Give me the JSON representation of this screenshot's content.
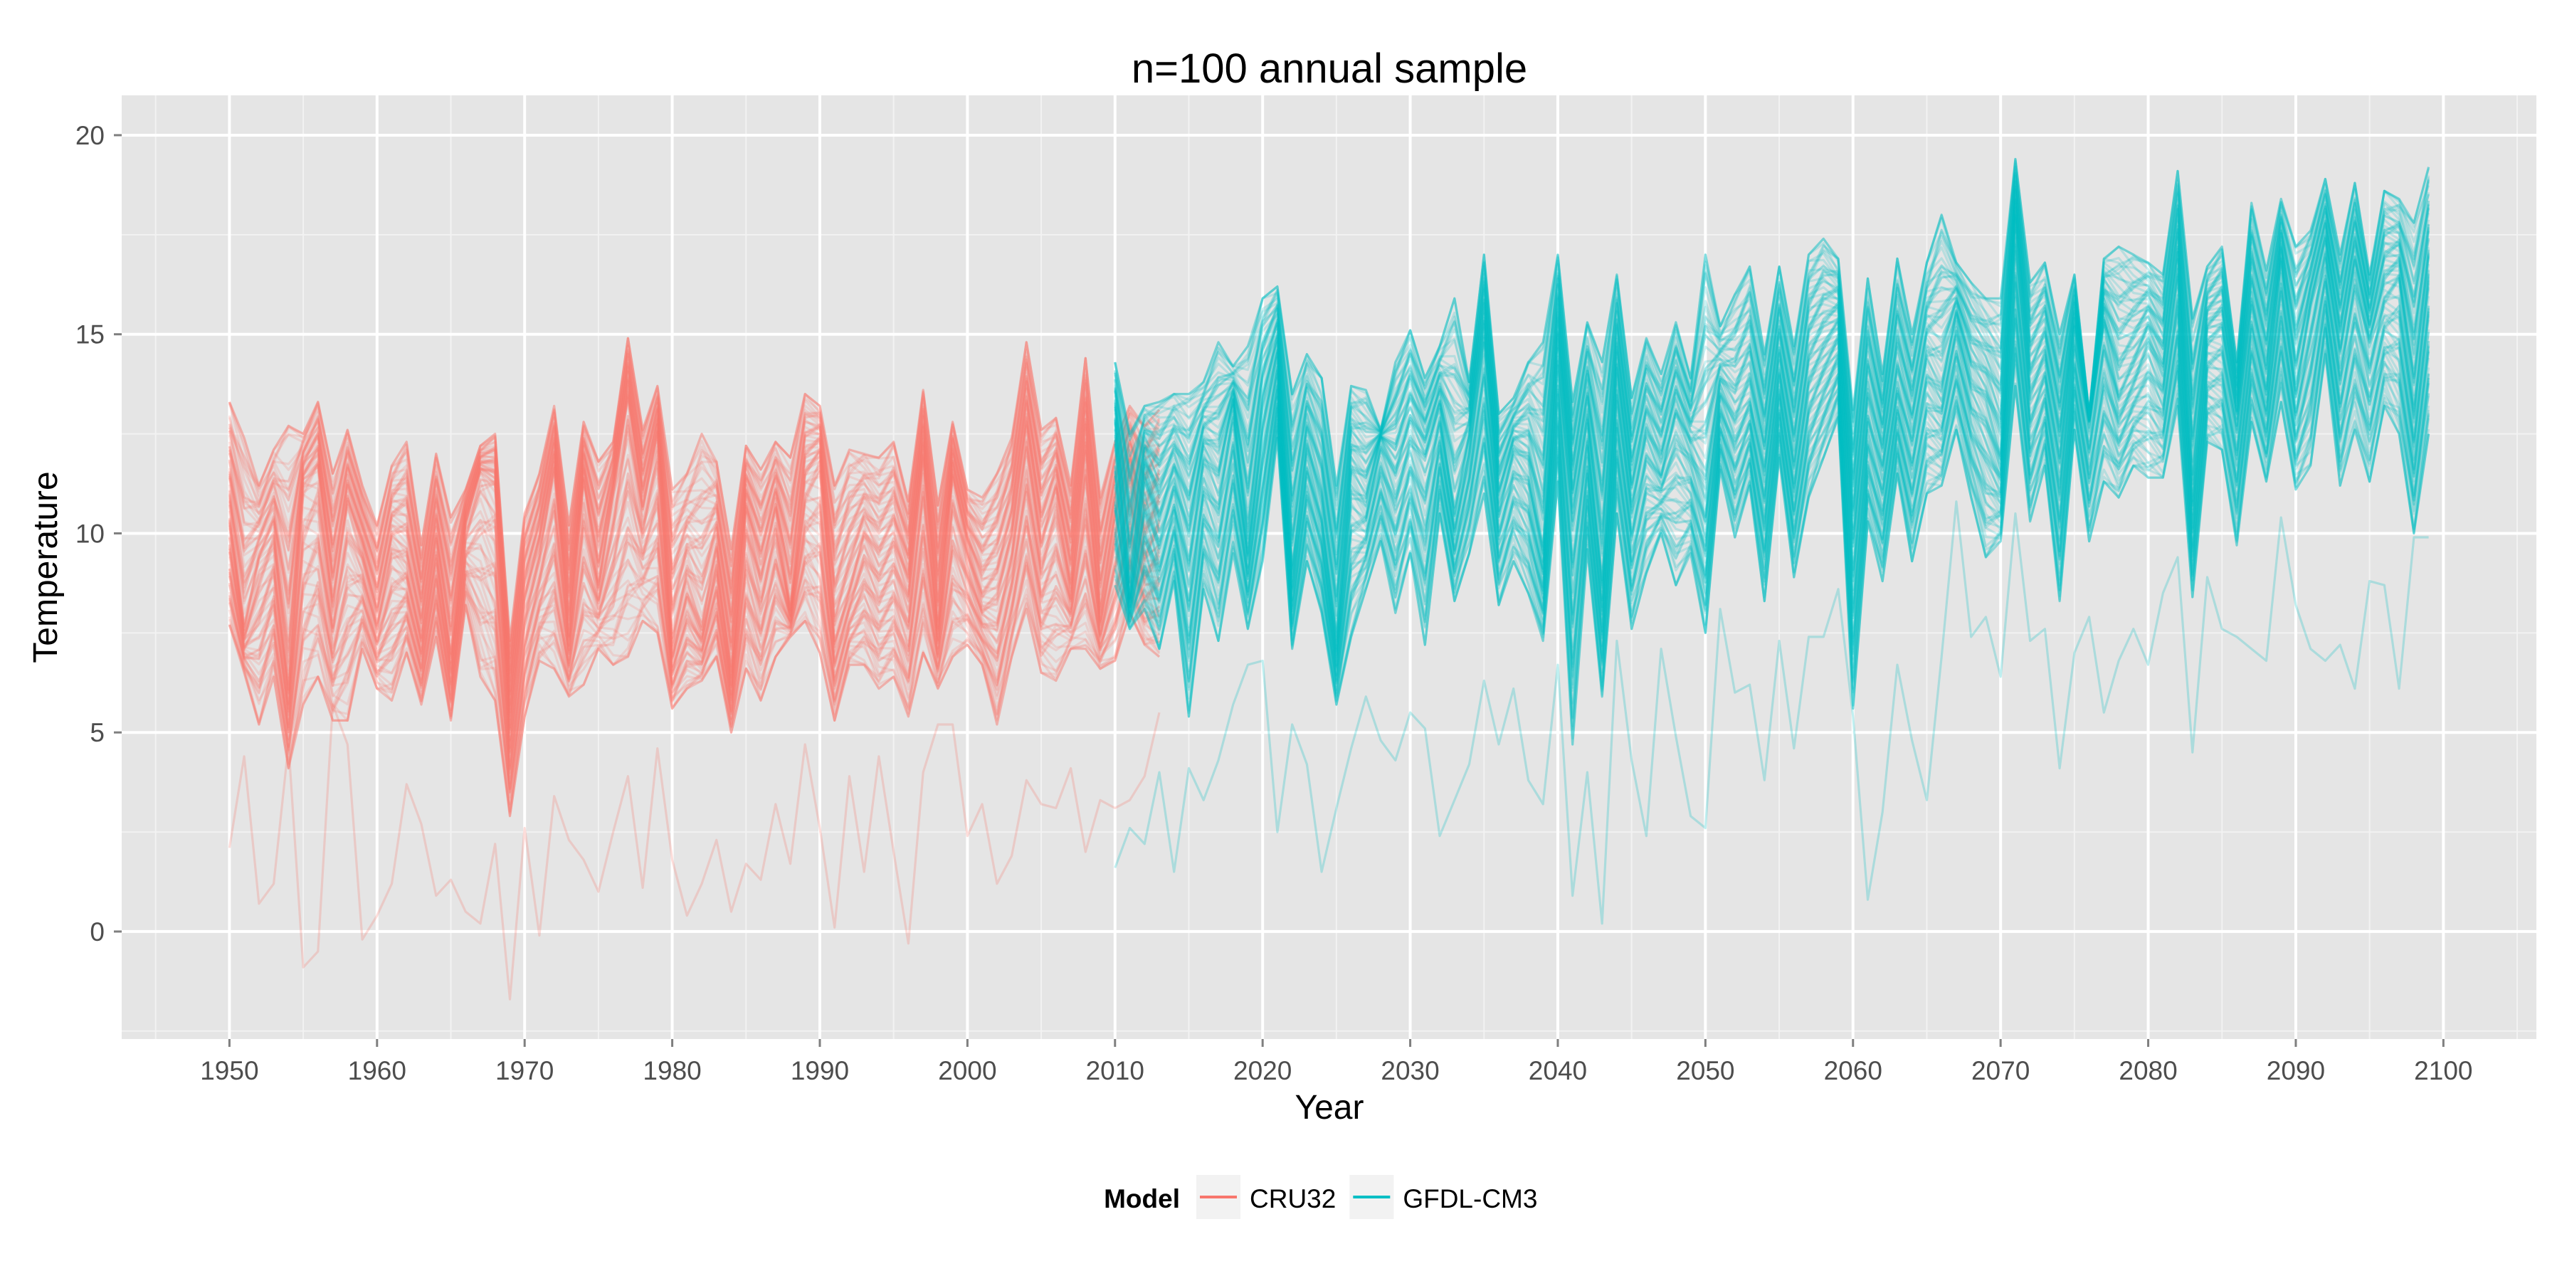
{
  "chart_data": {
    "type": "line",
    "title": "n=100 annual sample",
    "xlabel": "Year",
    "ylabel": "Temperature",
    "xlim": [
      1942.7,
      2106.3
    ],
    "ylim": [
      -2.7,
      21.0
    ],
    "x_ticks": [
      1950,
      1960,
      1970,
      1980,
      1990,
      2000,
      2010,
      2020,
      2030,
      2040,
      2050,
      2060,
      2070,
      2080,
      2090,
      2100
    ],
    "y_ticks": [
      0,
      5,
      10,
      15,
      20
    ],
    "grid": true,
    "legend": {
      "title": "Model",
      "position": "bottom",
      "entries": [
        {
          "label": "CRU32",
          "color": "#F8766D"
        },
        {
          "label": "GFDL-CM3",
          "color": "#00BFC4"
        }
      ]
    },
    "sample_size": 100,
    "note": "",
    "series": [
      {
        "name": "CRU32",
        "color": "#F8766D",
        "x_start": 1950,
        "x_end": 2013,
        "mean": [
          10.6,
          7.6,
          9.2,
          9.9,
          6.3,
          11.2,
          11.6,
          8.3,
          10.7,
          9.5,
          7.9,
          9.6,
          9.3,
          7.4,
          9.8,
          7.0,
          10.2,
          11.5,
          11.2,
          5.2,
          8.3,
          9.6,
          11.6,
          7.5,
          11.3,
          8.8,
          11.0,
          13.3,
          10.6,
          12.4,
          7.2,
          8.7,
          7.6,
          9.4,
          6.5,
          10.5,
          8.9,
          10.5,
          8.1,
          11.3,
          11.8,
          7.5,
          8.6,
          9.8,
          9.0,
          9.6,
          8.5,
          11.8,
          7.7,
          11.4,
          9.6,
          8.3,
          8.6,
          9.9,
          12.5,
          9.6,
          10.9,
          8.6,
          11.9,
          8.0,
          10.2,
          11.5,
          9.6,
          10.2
        ],
        "upper": [
          13.3,
          12.4,
          11.2,
          12.1,
          12.7,
          12.5,
          13.3,
          11.5,
          12.6,
          11.2,
          10.2,
          11.7,
          12.3,
          9.7,
          12.0,
          10.4,
          11.1,
          12.2,
          12.5,
          7.3,
          10.5,
          11.5,
          13.2,
          10.2,
          12.8,
          11.8,
          12.3,
          14.9,
          12.6,
          13.7,
          11.1,
          11.5,
          12.5,
          11.8,
          9.6,
          12.2,
          11.6,
          12.3,
          11.9,
          13.5,
          13.2,
          11.2,
          12.1,
          12.0,
          11.9,
          12.3,
          10.8,
          13.6,
          10.7,
          12.8,
          11.1,
          10.9,
          11.5,
          12.4,
          14.8,
          12.6,
          12.9,
          11.2,
          14.4,
          10.9,
          12.3,
          13.2,
          12.7,
          13.1
        ],
        "lower": [
          7.7,
          6.5,
          5.2,
          6.4,
          4.1,
          5.7,
          6.4,
          5.3,
          5.3,
          7.1,
          6.1,
          5.8,
          7.0,
          5.7,
          7.4,
          5.3,
          8.2,
          6.4,
          5.8,
          2.9,
          5.4,
          6.8,
          6.6,
          5.9,
          6.2,
          7.1,
          6.7,
          6.9,
          7.8,
          7.5,
          5.6,
          6.1,
          6.3,
          6.9,
          5.0,
          6.6,
          5.8,
          6.9,
          7.4,
          7.8,
          7.0,
          5.3,
          6.7,
          6.7,
          6.1,
          6.4,
          5.4,
          7.0,
          6.1,
          6.9,
          7.2,
          6.7,
          5.2,
          6.9,
          8.1,
          6.5,
          6.3,
          7.1,
          7.1,
          6.6,
          6.8,
          8.0,
          7.2,
          6.9
        ],
        "outlier": [
          2.1,
          4.4,
          0.7,
          1.2,
          4.7,
          -0.9,
          -0.5,
          5.7,
          4.7,
          -0.2,
          0.4,
          1.2,
          3.7,
          2.7,
          0.9,
          1.3,
          0.5,
          0.2,
          2.2,
          -1.7,
          2.6,
          -0.1,
          3.4,
          2.3,
          1.8,
          1.0,
          2.5,
          3.9,
          1.1,
          4.6,
          1.8,
          0.4,
          1.2,
          2.3,
          0.5,
          1.7,
          1.3,
          3.2,
          1.7,
          4.7,
          2.6,
          0.1,
          3.9,
          1.5,
          4.4,
          2.0,
          -0.3,
          4.0,
          5.2,
          5.2,
          2.4,
          3.2,
          1.2,
          1.9,
          3.8,
          3.2,
          3.1,
          4.1,
          2.0,
          3.3,
          3.1,
          3.3,
          3.9,
          5.5
        ]
      },
      {
        "name": "GFDL-CM3",
        "color": "#00BFC4",
        "x_start": 2010,
        "x_end": 2099,
        "mean": [
          12.5,
          8.5,
          11.5,
          10.2,
          11.3,
          9.9,
          12.0,
          11.3,
          13.2,
          9.8,
          12.9,
          14.5,
          9.2,
          12.1,
          10.5,
          7.3,
          11.3,
          10.8,
          12.4,
          11.5,
          12.6,
          11.9,
          13.1,
          10.5,
          12.3,
          14.9,
          10.8,
          12.1,
          11.7,
          9.6,
          14.8,
          10.5,
          12.7,
          8.8,
          14.0,
          10.7,
          12.4,
          11.5,
          12.9,
          12.0,
          10.9,
          13.6,
          12.7,
          13.4,
          11.4,
          14.2,
          11.6,
          14.0,
          14.6,
          15.1,
          9.7,
          13.1,
          11.6,
          13.8,
          12.3,
          14.2,
          13.6,
          15.4,
          13.7,
          13.2,
          11.9,
          17.8,
          13.5,
          14.3,
          11.9,
          15.1,
          12.8,
          15.2,
          13.5,
          14.1,
          14.9,
          14.0,
          16.7,
          11.1,
          14.9,
          15.1,
          12.8,
          15.7,
          13.7,
          16.8,
          13.7,
          15.7,
          17.2,
          14.5,
          16.6,
          14.8,
          16.1,
          16.4,
          13.3,
          16.4
        ],
        "upper": [
          14.3,
          12.5,
          13.2,
          13.3,
          13.5,
          13.5,
          13.8,
          14.8,
          14.2,
          14.7,
          15.9,
          16.2,
          13.5,
          14.5,
          13.9,
          11.2,
          13.7,
          13.6,
          12.6,
          14.3,
          15.1,
          13.9,
          14.7,
          15.9,
          13.8,
          17.0,
          13.0,
          13.4,
          14.3,
          14.8,
          17.0,
          13.3,
          15.3,
          14.3,
          16.5,
          13.4,
          14.9,
          14.0,
          15.3,
          13.9,
          17.0,
          15.2,
          16.0,
          16.7,
          14.5,
          16.7,
          14.7,
          17.0,
          17.4,
          16.9,
          13.1,
          16.4,
          14.0,
          16.9,
          15.0,
          16.8,
          18.0,
          16.8,
          16.3,
          15.9,
          15.9,
          19.4,
          16.3,
          16.8,
          15.0,
          16.5,
          13.0,
          16.9,
          17.2,
          17.0,
          16.8,
          16.5,
          19.1,
          15.4,
          16.7,
          17.2,
          14.3,
          18.3,
          16.6,
          18.4,
          17.2,
          17.6,
          18.9,
          17.0,
          18.8,
          16.5,
          18.6,
          18.4,
          17.8,
          19.2
        ],
        "lower": [
          8.7,
          7.6,
          8.1,
          7.1,
          8.8,
          5.4,
          8.6,
          7.3,
          9.5,
          7.6,
          9.3,
          12.4,
          7.1,
          9.3,
          8.0,
          5.7,
          7.4,
          8.6,
          9.8,
          8.0,
          9.5,
          7.2,
          10.5,
          8.3,
          9.5,
          11.0,
          8.2,
          9.3,
          8.5,
          7.3,
          11.3,
          4.7,
          9.6,
          5.9,
          10.5,
          7.6,
          9.0,
          10.0,
          8.7,
          9.5,
          7.5,
          11.6,
          9.9,
          11.2,
          8.3,
          11.9,
          8.9,
          10.9,
          11.9,
          12.9,
          5.6,
          10.3,
          8.8,
          11.5,
          9.3,
          11.0,
          11.2,
          12.6,
          10.9,
          9.4,
          9.8,
          13.7,
          10.3,
          11.7,
          8.3,
          12.6,
          9.8,
          11.3,
          10.9,
          11.7,
          11.4,
          11.4,
          13.2,
          8.4,
          12.3,
          12.1,
          9.7,
          12.8,
          11.3,
          13.3,
          11.1,
          11.7,
          14.5,
          11.2,
          12.6,
          11.3,
          13.2,
          12.5,
          10.0,
          12.5
        ],
        "outlier": [
          1.6,
          2.6,
          2.2,
          4.0,
          1.5,
          4.1,
          3.3,
          4.3,
          5.7,
          6.7,
          6.8,
          2.5,
          5.2,
          4.2,
          1.5,
          3.1,
          4.6,
          5.9,
          4.8,
          4.3,
          5.5,
          5.1,
          2.4,
          3.3,
          4.2,
          6.3,
          4.7,
          6.1,
          3.8,
          3.2,
          6.7,
          0.9,
          4.0,
          0.2,
          7.3,
          4.3,
          2.4,
          7.1,
          4.9,
          2.9,
          2.6,
          8.1,
          6.0,
          6.2,
          3.8,
          7.3,
          4.6,
          7.4,
          7.4,
          8.6,
          5.4,
          0.8,
          3.0,
          6.7,
          4.8,
          3.3,
          6.9,
          10.8,
          7.4,
          7.9,
          6.4,
          10.5,
          7.3,
          7.6,
          4.1,
          7.0,
          7.9,
          5.5,
          6.8,
          7.6,
          6.7,
          8.5,
          9.4,
          4.5,
          8.9,
          7.6,
          7.4,
          7.1,
          6.8,
          10.4,
          8.2,
          7.1,
          6.8,
          7.2,
          6.1,
          8.8,
          8.7,
          6.1,
          9.9,
          9.9
        ]
      }
    ]
  }
}
